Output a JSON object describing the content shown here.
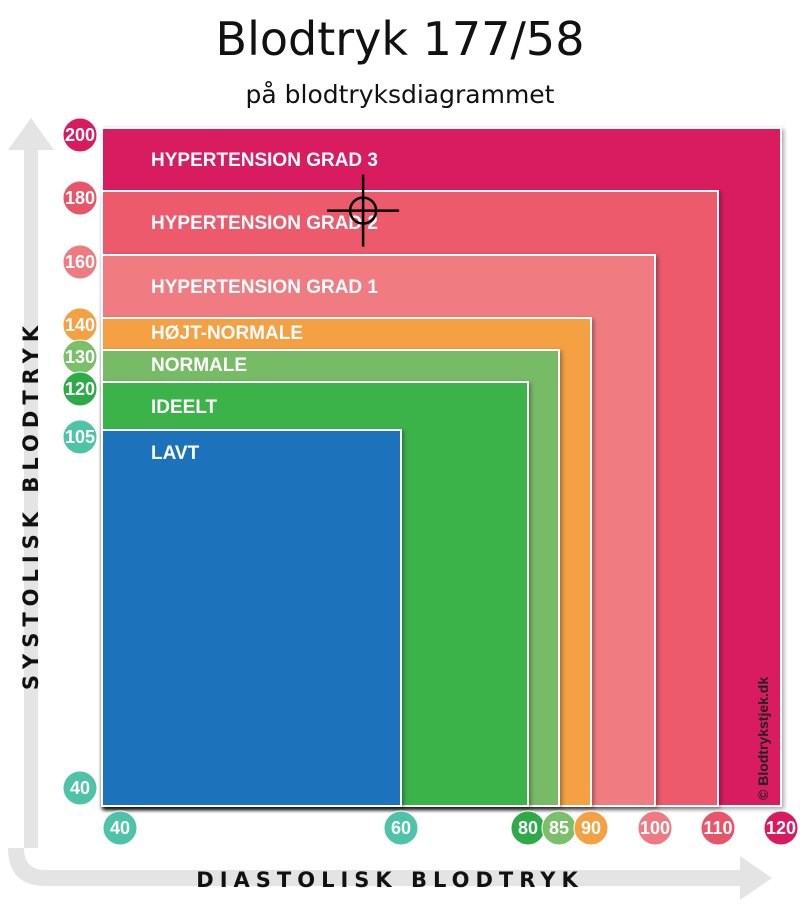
{
  "header": {
    "title": "Blodtryk 177/58",
    "subtitle": "på blodtryksdiagrammet"
  },
  "chart_data": {
    "type": "area",
    "title": "Blodtryk 177/58",
    "subtitle": "på blodtryksdiagrammet",
    "xlabel": "DIASTOLISK BLODTRYK",
    "ylabel": "SYSTOLISK BLODTRYK",
    "xlim": [
      40,
      120
    ],
    "ylim": [
      40,
      200
    ],
    "x_ticks": [
      {
        "value": 40,
        "label": "40",
        "color": "#4fc3a8"
      },
      {
        "value": 60,
        "label": "60",
        "color": "#4fc3a8"
      },
      {
        "value": 80,
        "label": "80",
        "color": "#2faa48"
      },
      {
        "value": 85,
        "label": "85",
        "color": "#7cbf6a"
      },
      {
        "value": 90,
        "label": "90",
        "color": "#f5a042"
      },
      {
        "value": 100,
        "label": "100",
        "color": "#ee7b82"
      },
      {
        "value": 110,
        "label": "110",
        "color": "#e85468"
      },
      {
        "value": 120,
        "label": "120",
        "color": "#d81b5e"
      }
    ],
    "y_ticks": [
      {
        "value": 200,
        "label": "200",
        "color": "#d81b5e"
      },
      {
        "value": 180,
        "label": "180",
        "color": "#e85468"
      },
      {
        "value": 160,
        "label": "160",
        "color": "#ee7b82"
      },
      {
        "value": 140,
        "label": "140",
        "color": "#f5a042"
      },
      {
        "value": 130,
        "label": "130",
        "color": "#7cbf6a"
      },
      {
        "value": 120,
        "label": "120",
        "color": "#2faa48"
      },
      {
        "value": 105,
        "label": "105",
        "color": "#4fc3a8"
      },
      {
        "value": 40,
        "label": "40",
        "color": "#4fc3a8"
      }
    ],
    "zones": [
      {
        "label": "HYPERTENSION GRAD 3",
        "max_diastolic": 120,
        "max_systolic": 200,
        "color": "#d81b5e"
      },
      {
        "label": "HYPERTENSION GRAD 2",
        "max_diastolic": 110,
        "max_systolic": 180,
        "color": "#ec5a6c"
      },
      {
        "label": "HYPERTENSION GRAD 1",
        "max_diastolic": 100,
        "max_systolic": 160,
        "color": "#f07c82"
      },
      {
        "label": "HØJT-NORMALE",
        "max_diastolic": 90,
        "max_systolic": 140,
        "color": "#f5a042"
      },
      {
        "label": "NORMALE",
        "max_diastolic": 85,
        "max_systolic": 130,
        "color": "#77bb66"
      },
      {
        "label": "IDEELT",
        "max_diastolic": 80,
        "max_systolic": 120,
        "color": "#3bb34a"
      },
      {
        "label": "LAVT",
        "max_diastolic": 60,
        "max_systolic": 105,
        "color": "#1e73bc"
      }
    ],
    "marker": {
      "diastolic": 58,
      "systolic": 177
    },
    "copyright": "© Blodtrykstjek.dk",
    "grid": false
  }
}
